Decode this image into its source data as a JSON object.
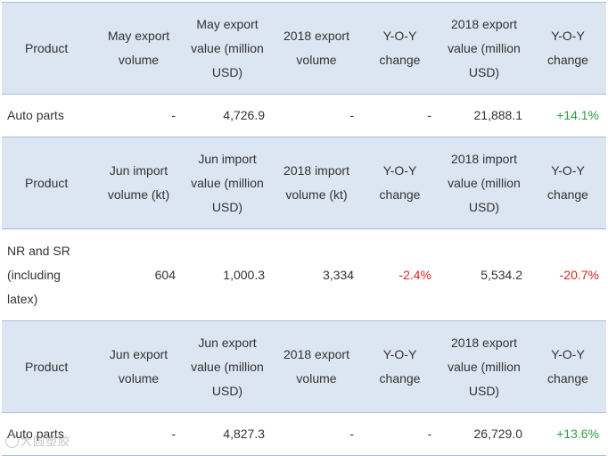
{
  "table1": {
    "headers": [
      "Product",
      "May export volume",
      "May export value (million USD)",
      "2018 export volume",
      "Y-O-Y change",
      "2018 export value (million USD)",
      "Y-O-Y change"
    ],
    "row": [
      "Auto parts",
      "-",
      "4,726.9",
      "-",
      "-",
      "21,888.1",
      "+14.1%"
    ]
  },
  "table2": {
    "headers": [
      "Product",
      "Jun import volume (kt)",
      "Jun import value (million USD)",
      "2018 import volume (kt)",
      "Y-O-Y change",
      "2018 import value (million USD)",
      "Y-O-Y change"
    ],
    "row": [
      "NR and SR (including latex)",
      "604",
      "1,000.3",
      "3,334",
      "-2.4%",
      "5,534.2",
      "-20.7%"
    ]
  },
  "table3": {
    "headers": [
      "Product",
      "Jun export volume",
      "Jun export value (million USD)",
      "2018 export volume",
      "Y-O-Y change",
      "2018 export value (million USD)",
      "Y-O-Y change"
    ],
    "row": [
      "Auto parts",
      "-",
      "4,827.3",
      "-",
      "-",
      "26,729.0",
      "+13.6%"
    ]
  },
  "colors": {
    "header_bg": "#dce5f2",
    "positive": "#2e9e46",
    "negative": "#e02020",
    "rule": "#a9bcd6"
  },
  "watermark": {
    "text": "大圆塑胶",
    "icon": "watermark-logo-icon"
  }
}
